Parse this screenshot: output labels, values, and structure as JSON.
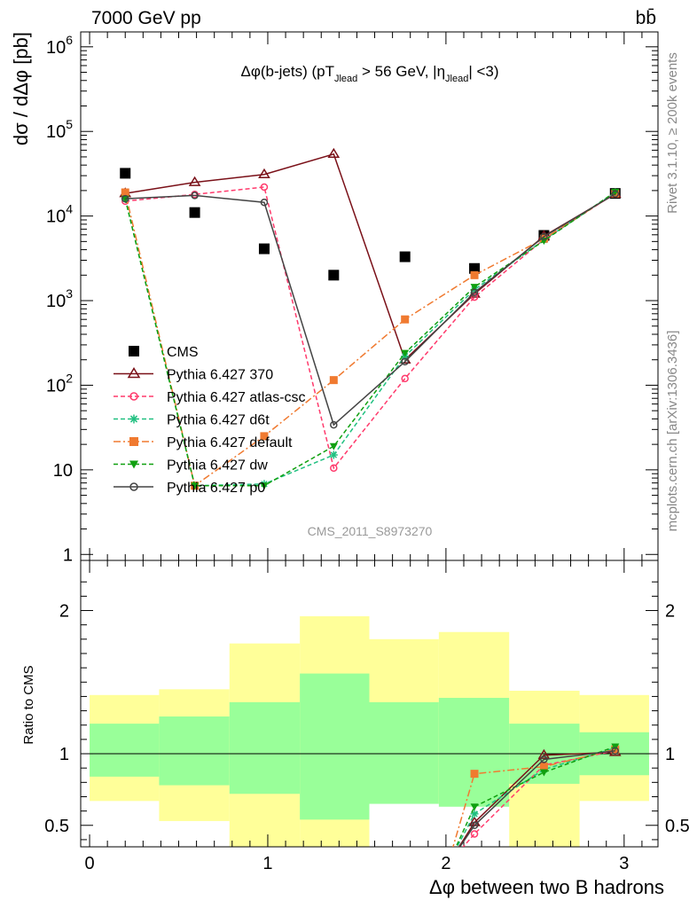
{
  "header": {
    "beam": "7000 GeV pp",
    "process": "bb̄",
    "rivet": "Rivet 3.1.10, ≥ 200k events",
    "source": "mcplots.cern.ch [arXiv:1306.3436]",
    "analysis": "CMS_2011_S8973270",
    "title": "Δφ(b-jets) (pT",
    "title_sub1": "Jlead",
    "title_mid": " >  56 GeV, |η",
    "title_sub2": "Jlead",
    "title_end": "| <3)"
  },
  "chart_data": [
    {
      "type": "scatter",
      "panel": "main",
      "ylabel": "dσ / dΔφ [pb]",
      "yscale": "log",
      "ylim": [
        0.85,
        1500000
      ],
      "xlim": [
        -0.05,
        3.19
      ],
      "yticks": [
        {
          "v": 1,
          "label": "1"
        },
        {
          "v": 10,
          "label": "10"
        },
        {
          "v": 100,
          "base": "10",
          "exp": "2"
        },
        {
          "v": 1000,
          "base": "10",
          "exp": "3"
        },
        {
          "v": 10000,
          "base": "10",
          "exp": "4"
        },
        {
          "v": 100000,
          "base": "10",
          "exp": "5"
        },
        {
          "v": 1000000,
          "base": "10",
          "exp": "6"
        }
      ],
      "x": [
        0.2,
        0.59,
        0.98,
        1.37,
        1.77,
        2.16,
        2.55,
        2.95
      ],
      "series": [
        {
          "name": "CMS",
          "color": "#000000",
          "marker": "square-filled",
          "dash": "",
          "line": false,
          "values": [
            32000,
            11000,
            4100,
            2000,
            3300,
            2400,
            5900,
            18500
          ]
        },
        {
          "name": "Pythia 6.427 370",
          "color": "#7a1018",
          "marker": "triangle-open",
          "dash": "",
          "line": true,
          "values": [
            18500,
            25000,
            31000,
            54000,
            200,
            1200,
            5800,
            18200
          ]
        },
        {
          "name": "Pythia 6.427 atlas-csc",
          "color": "#ff3a6c",
          "marker": "circle-open",
          "dash": "5,3",
          "line": true,
          "values": [
            15000,
            18000,
            22000,
            10.5,
            120,
            1100,
            5300,
            18500
          ]
        },
        {
          "name": "Pythia 6.427 d6t",
          "color": "#20c080",
          "marker": "star",
          "dash": "5,3",
          "line": true,
          "values": [
            16000,
            6.5,
            6.8,
            15,
            220,
            1350,
            5200,
            19000
          ]
        },
        {
          "name": "Pythia 6.427 default",
          "color": "#f07a30",
          "marker": "square-filled",
          "dash": "8,3,2,3",
          "line": true,
          "values": [
            19000,
            6.5,
            25,
            115,
            600,
            2000,
            5400,
            18500
          ]
        },
        {
          "name": "Pythia 6.427 dw",
          "color": "#10a010",
          "marker": "triangle-down-filled",
          "dash": "5,3",
          "line": true,
          "values": [
            16000,
            6.5,
            6.5,
            19,
            240,
            1450,
            5100,
            19300
          ]
        },
        {
          "name": "Pythia 6.427 p0",
          "color": "#444444",
          "marker": "circle-open",
          "dash": "",
          "line": true,
          "values": [
            16000,
            17500,
            14500,
            34,
            190,
            1250,
            5700,
            18300
          ]
        }
      ]
    },
    {
      "type": "scatter",
      "panel": "ratio",
      "ylabel": "Ratio to CMS",
      "xlabel": "Δφ between two B hadrons",
      "ylim": [
        0.35,
        2.35
      ],
      "yticks": [
        {
          "v": 0.5,
          "label": "0.5"
        },
        {
          "v": 1,
          "label": "1"
        },
        {
          "v": 2,
          "label": "2"
        }
      ],
      "xticks": [
        {
          "v": 0,
          "label": "0"
        },
        {
          "v": 1,
          "label": "1"
        },
        {
          "v": 2,
          "label": "2"
        },
        {
          "v": 3,
          "label": "3"
        }
      ],
      "bands": {
        "edges": [
          0,
          0.39,
          0.785,
          1.18,
          1.57,
          1.96,
          2.355,
          2.75,
          3.14
        ],
        "yellow_lo": [
          0.67,
          0.53,
          0.33,
          0.33,
          0.68,
          0.65,
          0.33,
          0.67
        ],
        "yellow_hi": [
          1.41,
          1.45,
          1.77,
          1.96,
          1.8,
          1.85,
          1.44,
          1.41
        ],
        "green_lo": [
          0.84,
          0.78,
          0.72,
          0.54,
          0.65,
          0.63,
          0.79,
          0.85
        ],
        "green_hi": [
          1.21,
          1.26,
          1.36,
          1.56,
          1.36,
          1.39,
          1.21,
          1.15
        ],
        "yellow_color": "#ffff99",
        "green_color": "#99ff99"
      },
      "x": [
        2.16,
        2.55,
        2.95
      ],
      "series": [
        {
          "name": "Pythia 6.427 370",
          "values": [
            0.52,
            0.99,
            1.01
          ]
        },
        {
          "name": "Pythia 6.427 atlas-csc",
          "values": [
            0.44,
            0.92,
            1.02
          ]
        },
        {
          "name": "Pythia 6.427 d6t",
          "values": [
            0.58,
            0.89,
            1.04
          ]
        },
        {
          "name": "Pythia 6.427 default",
          "values": [
            0.86,
            0.91,
            1.03
          ]
        },
        {
          "name": "Pythia 6.427 dw",
          "values": [
            0.63,
            0.87,
            1.05
          ]
        },
        {
          "name": "Pythia 6.427 p0",
          "values": [
            0.5,
            0.96,
            1.02
          ]
        }
      ]
    }
  ]
}
